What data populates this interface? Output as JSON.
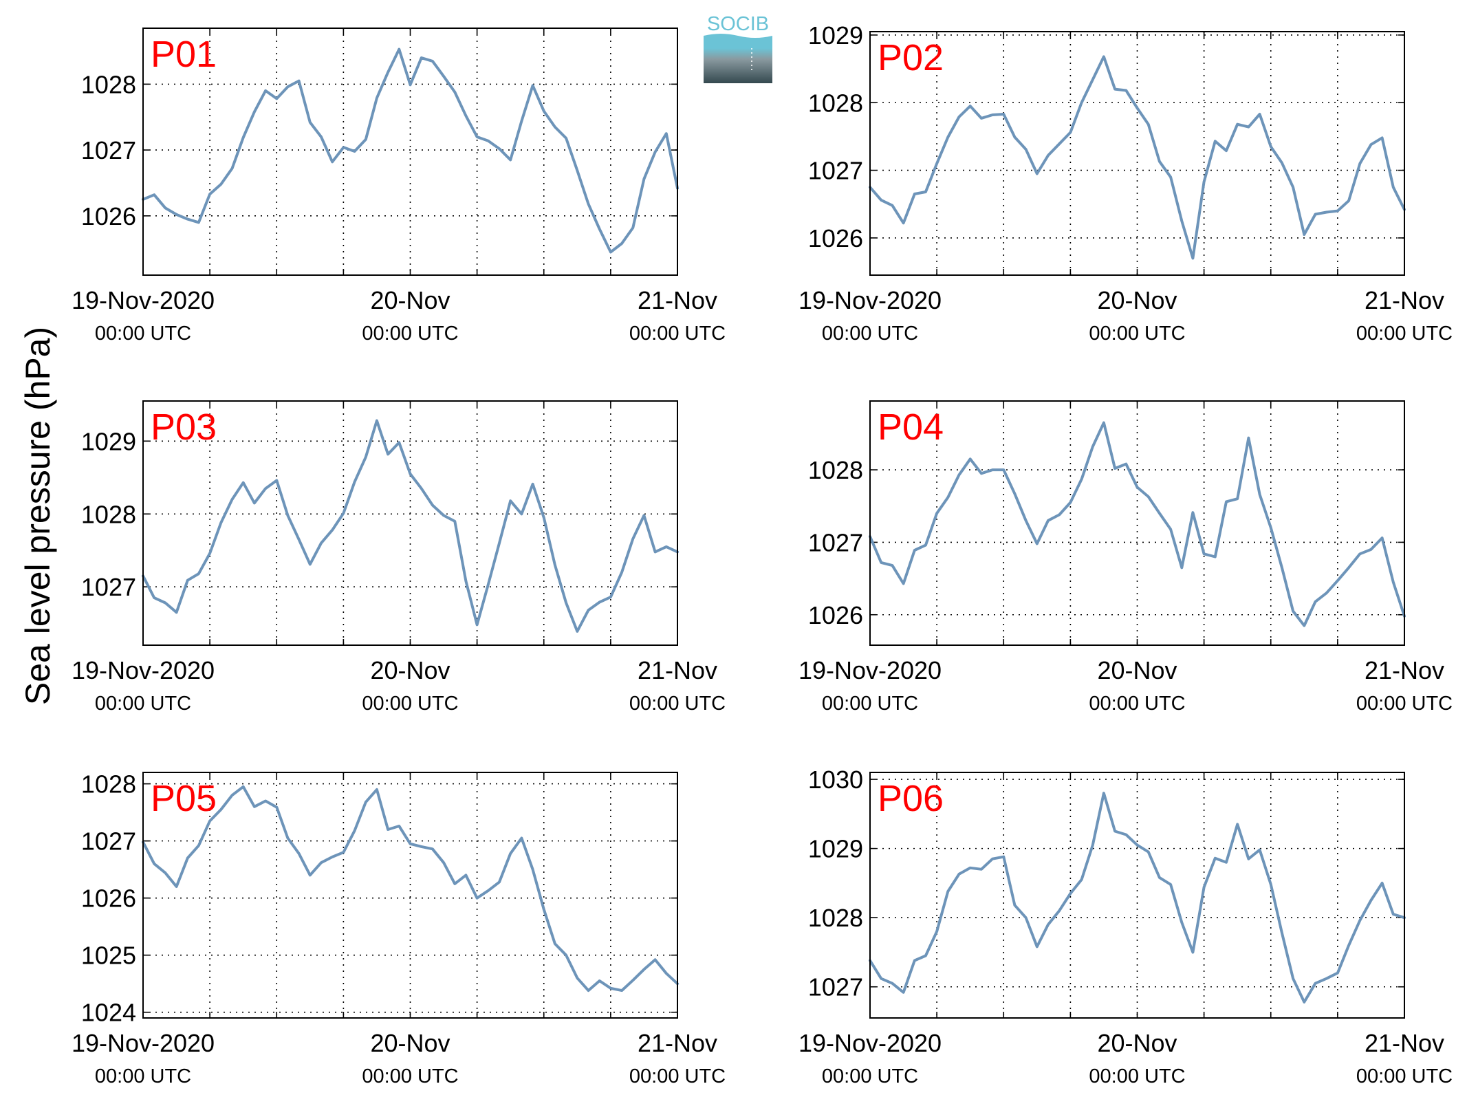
{
  "ylabel": "Sea level pressure (hPa)",
  "logo": {
    "text": "SOCIB",
    "text_color": "#6bc3d6",
    "top_color": "#6bc3d6",
    "bottom_color": "#34494f"
  },
  "colors": {
    "line": "#6d94b9",
    "panel_label": "#ff0000",
    "grid": "#000000"
  },
  "x_tick_labels": [
    {
      "date": "19-Nov-2020",
      "time": "00:00 UTC"
    },
    {
      "date": "20-Nov",
      "time": "00:00 UTC"
    },
    {
      "date": "21-Nov",
      "time": "00:00 UTC"
    }
  ],
  "chart_data": [
    {
      "type": "line",
      "name": "P01",
      "xlabel": "",
      "ylabel": "Sea level pressure (hPa)",
      "xlim": [
        "2020-11-19T00:00",
        "2020-11-21T00:00"
      ],
      "x_unit": "hours since 19-Nov-2020 00:00 UTC",
      "ylim": [
        1025.1,
        1028.85
      ],
      "yticks": [
        1026,
        1027,
        1028
      ],
      "grid": true,
      "x": [
        0,
        1,
        2,
        3,
        4,
        5,
        6,
        7,
        8,
        9,
        10,
        11,
        12,
        13,
        14,
        15,
        16,
        17,
        18,
        19,
        20,
        21,
        22,
        23,
        24,
        25,
        26,
        27,
        28,
        29,
        30,
        31,
        32,
        33,
        34,
        35,
        36,
        37,
        38,
        39,
        40,
        41,
        42,
        43,
        44,
        45,
        46,
        47,
        48
      ],
      "y": [
        1026.25,
        1026.32,
        1026.12,
        1026.02,
        1025.95,
        1025.9,
        1026.33,
        1026.48,
        1026.72,
        1027.19,
        1027.58,
        1027.9,
        1027.78,
        1027.96,
        1028.05,
        1027.42,
        1027.2,
        1026.82,
        1027.04,
        1026.98,
        1027.16,
        1027.79,
        1028.18,
        1028.53,
        1027.99,
        1028.4,
        1028.35,
        1028.12,
        1027.88,
        1027.52,
        1027.2,
        1027.14,
        1027.02,
        1026.85,
        1027.44,
        1027.98,
        1027.59,
        1027.35,
        1027.18,
        1026.69,
        1026.18,
        1025.8,
        1025.45,
        1025.58,
        1025.82,
        1026.56,
        1026.97,
        1027.25,
        1026.42
      ]
    },
    {
      "type": "line",
      "name": "P02",
      "xlabel": "",
      "ylabel": "Sea level pressure (hPa)",
      "xlim": [
        "2020-11-19T00:00",
        "2020-11-21T00:00"
      ],
      "x_unit": "hours since 19-Nov-2020 00:00 UTC",
      "ylim": [
        1025.45,
        1029.05
      ],
      "yticks": [
        1026,
        1027,
        1028,
        1029
      ],
      "grid": true,
      "x": [
        0,
        1,
        2,
        3,
        4,
        5,
        6,
        7,
        8,
        9,
        10,
        11,
        12,
        13,
        14,
        15,
        16,
        17,
        18,
        19,
        20,
        21,
        22,
        23,
        24,
        25,
        26,
        27,
        28,
        29,
        30,
        31,
        32,
        33,
        34,
        35,
        36,
        37,
        38,
        39,
        40,
        41,
        42,
        43,
        44,
        45,
        46,
        47,
        48
      ],
      "y": [
        1026.75,
        1026.56,
        1026.48,
        1026.22,
        1026.65,
        1026.68,
        1027.1,
        1027.49,
        1027.79,
        1027.95,
        1027.77,
        1027.82,
        1027.83,
        1027.49,
        1027.31,
        1026.95,
        1027.22,
        1027.39,
        1027.56,
        1028.0,
        1028.34,
        1028.68,
        1028.2,
        1028.18,
        1027.92,
        1027.68,
        1027.13,
        1026.9,
        1026.25,
        1025.7,
        1026.83,
        1027.43,
        1027.29,
        1027.68,
        1027.64,
        1027.83,
        1027.35,
        1027.11,
        1026.75,
        1026.05,
        1026.35,
        1026.38,
        1026.4,
        1026.55,
        1027.1,
        1027.38,
        1027.48,
        1026.75,
        1026.42
      ]
    },
    {
      "type": "line",
      "name": "P03",
      "xlabel": "",
      "ylabel": "Sea level pressure (hPa)",
      "xlim": [
        "2020-11-19T00:00",
        "2020-11-21T00:00"
      ],
      "x_unit": "hours since 19-Nov-2020 00:00 UTC",
      "ylim": [
        1026.2,
        1029.55
      ],
      "yticks": [
        1027,
        1028,
        1029
      ],
      "grid": true,
      "x": [
        0,
        1,
        2,
        3,
        4,
        5,
        6,
        7,
        8,
        9,
        10,
        11,
        12,
        13,
        14,
        15,
        16,
        17,
        18,
        19,
        20,
        21,
        22,
        23,
        24,
        25,
        26,
        27,
        28,
        29,
        30,
        31,
        32,
        33,
        34,
        35,
        36,
        37,
        38,
        39,
        40,
        41,
        42,
        43,
        44,
        45,
        46,
        47,
        48
      ],
      "y": [
        1027.15,
        1026.85,
        1026.78,
        1026.65,
        1027.09,
        1027.18,
        1027.46,
        1027.88,
        1028.2,
        1028.43,
        1028.15,
        1028.35,
        1028.46,
        1027.98,
        1027.65,
        1027.31,
        1027.6,
        1027.78,
        1028.01,
        1028.44,
        1028.78,
        1029.28,
        1028.82,
        1028.98,
        1028.55,
        1028.35,
        1028.12,
        1027.98,
        1027.9,
        1027.08,
        1026.48,
        1027.03,
        1027.6,
        1028.18,
        1028.0,
        1028.41,
        1027.95,
        1027.3,
        1026.78,
        1026.39,
        1026.68,
        1026.79,
        1026.86,
        1027.2,
        1027.66,
        1027.98,
        1027.48,
        1027.55,
        1027.48
      ]
    },
    {
      "type": "line",
      "name": "P04",
      "xlabel": "",
      "ylabel": "Sea level pressure (hPa)",
      "xlim": [
        "2020-11-19T00:00",
        "2020-11-21T00:00"
      ],
      "x_unit": "hours since 19-Nov-2020 00:00 UTC",
      "ylim": [
        1025.58,
        1028.95
      ],
      "yticks": [
        1026,
        1027,
        1028
      ],
      "grid": true,
      "x": [
        0,
        1,
        2,
        3,
        4,
        5,
        6,
        7,
        8,
        9,
        10,
        11,
        12,
        13,
        14,
        15,
        16,
        17,
        18,
        19,
        20,
        21,
        22,
        23,
        24,
        25,
        26,
        27,
        28,
        29,
        30,
        31,
        32,
        33,
        34,
        35,
        36,
        37,
        38,
        39,
        40,
        41,
        42,
        43,
        44,
        45,
        46,
        47,
        48
      ],
      "y": [
        1027.08,
        1026.72,
        1026.68,
        1026.43,
        1026.89,
        1026.96,
        1027.4,
        1027.62,
        1027.93,
        1028.15,
        1027.95,
        1028.0,
        1028.0,
        1027.67,
        1027.3,
        1026.98,
        1027.3,
        1027.38,
        1027.55,
        1027.87,
        1028.32,
        1028.65,
        1028.02,
        1028.08,
        1027.76,
        1027.63,
        1027.4,
        1027.18,
        1026.65,
        1027.41,
        1026.84,
        1026.8,
        1027.56,
        1027.6,
        1028.44,
        1027.66,
        1027.2,
        1026.65,
        1026.05,
        1025.85,
        1026.18,
        1026.3,
        1026.47,
        1026.65,
        1026.84,
        1026.9,
        1027.06,
        1026.45,
        1025.98
      ]
    },
    {
      "type": "line",
      "name": "P05",
      "xlabel": "",
      "ylabel": "Sea level pressure (hPa)",
      "xlim": [
        "2020-11-19T00:00",
        "2020-11-21T00:00"
      ],
      "x_unit": "hours since 19-Nov-2020 00:00 UTC",
      "ylim": [
        1023.9,
        1028.2
      ],
      "yticks": [
        1024,
        1025,
        1026,
        1027,
        1028
      ],
      "grid": true,
      "x": [
        0,
        1,
        2,
        3,
        4,
        5,
        6,
        7,
        8,
        9,
        10,
        11,
        12,
        13,
        14,
        15,
        16,
        17,
        18,
        19,
        20,
        21,
        22,
        23,
        24,
        25,
        26,
        27,
        28,
        29,
        30,
        31,
        32,
        33,
        34,
        35,
        36,
        37,
        38,
        39,
        40,
        41,
        42,
        43,
        44,
        45,
        46,
        47,
        48
      ],
      "y": [
        1026.98,
        1026.6,
        1026.44,
        1026.2,
        1026.7,
        1026.92,
        1027.35,
        1027.55,
        1027.8,
        1027.95,
        1027.6,
        1027.7,
        1027.59,
        1027.05,
        1026.78,
        1026.4,
        1026.62,
        1026.72,
        1026.8,
        1027.18,
        1027.68,
        1027.9,
        1027.2,
        1027.26,
        1026.95,
        1026.9,
        1026.86,
        1026.62,
        1026.25,
        1026.4,
        1026.0,
        1026.13,
        1026.28,
        1026.78,
        1027.05,
        1026.5,
        1025.8,
        1025.2,
        1025.0,
        1024.6,
        1024.38,
        1024.55,
        1024.42,
        1024.38,
        1024.56,
        1024.75,
        1024.92,
        1024.68,
        1024.5
      ]
    },
    {
      "type": "line",
      "name": "P06",
      "xlabel": "",
      "ylabel": "Sea level pressure (hPa)",
      "xlim": [
        "2020-11-19T00:00",
        "2020-11-21T00:00"
      ],
      "x_unit": "hours since 19-Nov-2020 00:00 UTC",
      "ylim": [
        1026.55,
        1030.1
      ],
      "yticks": [
        1027,
        1028,
        1029,
        1030
      ],
      "grid": true,
      "x": [
        0,
        1,
        2,
        3,
        4,
        5,
        6,
        7,
        8,
        9,
        10,
        11,
        12,
        13,
        14,
        15,
        16,
        17,
        18,
        19,
        20,
        21,
        22,
        23,
        24,
        25,
        26,
        27,
        28,
        29,
        30,
        31,
        32,
        33,
        34,
        35,
        36,
        37,
        38,
        39,
        40,
        41,
        42,
        43,
        44,
        45,
        46,
        47,
        48
      ],
      "y": [
        1027.38,
        1027.12,
        1027.05,
        1026.92,
        1027.38,
        1027.45,
        1027.8,
        1028.38,
        1028.63,
        1028.72,
        1028.7,
        1028.85,
        1028.88,
        1028.18,
        1028.0,
        1027.58,
        1027.9,
        1028.1,
        1028.35,
        1028.55,
        1029.05,
        1029.8,
        1029.25,
        1029.2,
        1029.05,
        1028.95,
        1028.58,
        1028.48,
        1027.93,
        1027.5,
        1028.44,
        1028.86,
        1028.8,
        1029.35,
        1028.85,
        1028.98,
        1028.48,
        1027.78,
        1027.12,
        1026.78,
        1027.05,
        1027.12,
        1027.2,
        1027.6,
        1027.96,
        1028.25,
        1028.5,
        1028.05,
        1028.0
      ]
    }
  ]
}
